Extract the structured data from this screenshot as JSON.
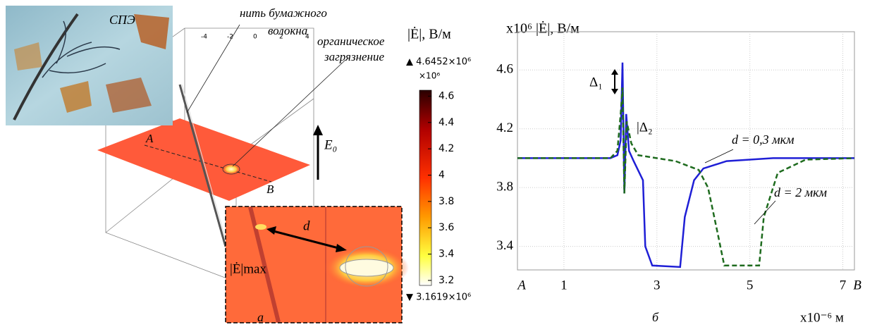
{
  "panel_a": {
    "photo_label": "СПЭ",
    "fiber_label": [
      "нить бумажного",
      "волокна"
    ],
    "contamination_label": [
      "органическое",
      "загрязнение"
    ],
    "box_ticks": [
      -4,
      -2,
      0,
      2,
      4
    ],
    "point_a": "A",
    "point_b": "B",
    "field_label": "E₀",
    "distance_label": "d",
    "emax_label": "|Ė|max",
    "panel_label": "а",
    "colorbar": {
      "title": "|Ė|, В/м",
      "max_label": "▲ 4.6452×10⁶",
      "scale_label": "×10⁶",
      "min_label": "▼ 3.1619×10⁶",
      "clim": [
        3.1619,
        4.6452
      ],
      "ticks": [
        4.6,
        4.4,
        4.2,
        4,
        3.8,
        3.6,
        3.4,
        3.2
      ]
    }
  },
  "chart_data": {
    "type": "line",
    "y_label": "x10⁶ |Ė|, В/м",
    "x_label": "x10⁻⁶ м",
    "panel_label": "б",
    "xlim": [
      0,
      7.25
    ],
    "ylim": [
      3.24,
      4.86
    ],
    "xticks": [
      {
        "value": 0,
        "label": "A"
      },
      1,
      3,
      5,
      7,
      {
        "value": 7.25,
        "label": "B"
      }
    ],
    "yticks": [
      3.4,
      3.8,
      4.2,
      4.6
    ],
    "grid": true,
    "series": [
      {
        "name": "d = 0,3 мкм",
        "color": "#1f1fd6",
        "dash": false,
        "x": [
          0,
          2.0,
          2.15,
          2.22,
          2.26,
          2.3,
          2.34,
          2.4,
          2.5,
          2.7,
          2.75,
          2.9,
          3.5,
          3.6,
          3.8,
          4.0,
          4.5,
          5.5,
          7.25
        ],
        "values": [
          4.0,
          4.0,
          4.02,
          4.12,
          4.65,
          3.76,
          4.3,
          4.05,
          3.98,
          3.85,
          3.4,
          3.27,
          3.26,
          3.6,
          3.85,
          3.93,
          3.98,
          4.0,
          4.0
        ]
      },
      {
        "name": "d = 2 мкм",
        "color": "#1e6b1e",
        "dash": true,
        "x": [
          0,
          2.0,
          2.15,
          2.22,
          2.26,
          2.3,
          2.35,
          2.45,
          2.6,
          3.4,
          3.9,
          4.1,
          4.3,
          4.45,
          5.2,
          5.3,
          5.6,
          6.2,
          7.25
        ],
        "values": [
          4.0,
          4.0,
          4.05,
          4.3,
          4.48,
          3.76,
          4.25,
          4.1,
          4.02,
          3.98,
          3.92,
          3.8,
          3.5,
          3.27,
          3.27,
          3.6,
          3.9,
          3.99,
          4.0
        ]
      }
    ],
    "annotations": [
      "Δ₁",
      "|Δ₂"
    ]
  }
}
